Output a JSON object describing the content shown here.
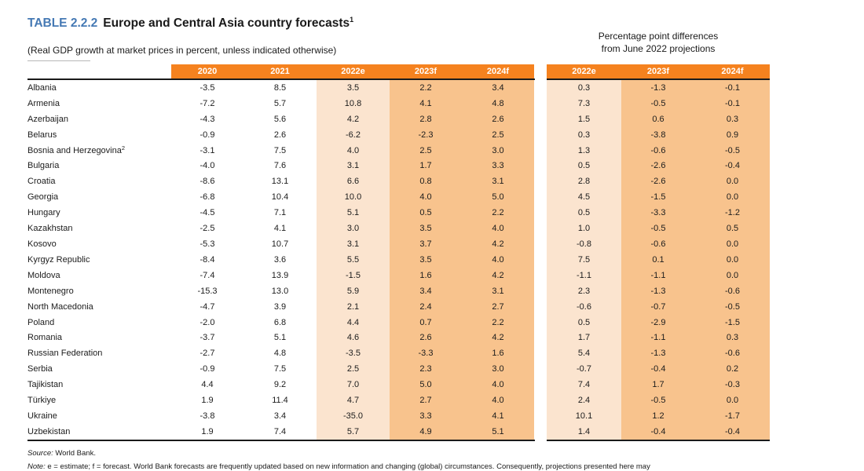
{
  "title": {
    "label": "TABLE 2.2.2",
    "text": "Europe and Central Asia country forecasts",
    "footnote": "1"
  },
  "subtitle": "(Real GDP growth at market prices in percent, unless indicated otherwise)",
  "right_caption": {
    "line1": "Percentage point differences",
    "line2": "from June 2022 projections"
  },
  "columns_main": [
    "2020",
    "2021",
    "2022e",
    "2023f",
    "2024f"
  ],
  "columns_diff": [
    "2022e",
    "2023f",
    "2024f"
  ],
  "colors": {
    "header_orange": "#F5821F",
    "light_shade": "#FBE4CF",
    "dark_shade": "#F8C38D",
    "title_blue": "#4579B4"
  },
  "rows": [
    {
      "country": "Albania",
      "sup": "",
      "main": [
        "-3.5",
        "8.5",
        "3.5",
        "2.2",
        "3.4"
      ],
      "diff": [
        "0.3",
        "-1.3",
        "-0.1"
      ]
    },
    {
      "country": "Armenia",
      "sup": "",
      "main": [
        "-7.2",
        "5.7",
        "10.8",
        "4.1",
        "4.8"
      ],
      "diff": [
        "7.3",
        "-0.5",
        "-0.1"
      ]
    },
    {
      "country": "Azerbaijan",
      "sup": "",
      "main": [
        "-4.3",
        "5.6",
        "4.2",
        "2.8",
        "2.6"
      ],
      "diff": [
        "1.5",
        "0.6",
        "0.3"
      ]
    },
    {
      "country": "Belarus",
      "sup": "",
      "main": [
        "-0.9",
        "2.6",
        "-6.2",
        "-2.3",
        "2.5"
      ],
      "diff": [
        "0.3",
        "-3.8",
        "0.9"
      ]
    },
    {
      "country": "Bosnia and Herzegovina",
      "sup": "2",
      "main": [
        "-3.1",
        "7.5",
        "4.0",
        "2.5",
        "3.0"
      ],
      "diff": [
        "1.3",
        "-0.6",
        "-0.5"
      ]
    },
    {
      "country": "Bulgaria",
      "sup": "",
      "main": [
        "-4.0",
        "7.6",
        "3.1",
        "1.7",
        "3.3"
      ],
      "diff": [
        "0.5",
        "-2.6",
        "-0.4"
      ]
    },
    {
      "country": "Croatia",
      "sup": "",
      "main": [
        "-8.6",
        "13.1",
        "6.6",
        "0.8",
        "3.1"
      ],
      "diff": [
        "2.8",
        "-2.6",
        "0.0"
      ]
    },
    {
      "country": "Georgia",
      "sup": "",
      "main": [
        "-6.8",
        "10.4",
        "10.0",
        "4.0",
        "5.0"
      ],
      "diff": [
        "4.5",
        "-1.5",
        "0.0"
      ]
    },
    {
      "country": "Hungary",
      "sup": "",
      "main": [
        "-4.5",
        "7.1",
        "5.1",
        "0.5",
        "2.2"
      ],
      "diff": [
        "0.5",
        "-3.3",
        "-1.2"
      ]
    },
    {
      "country": "Kazakhstan",
      "sup": "",
      "main": [
        "-2.5",
        "4.1",
        "3.0",
        "3.5",
        "4.0"
      ],
      "diff": [
        "1.0",
        "-0.5",
        "0.5"
      ]
    },
    {
      "country": "Kosovo",
      "sup": "",
      "main": [
        "-5.3",
        "10.7",
        "3.1",
        "3.7",
        "4.2"
      ],
      "diff": [
        "-0.8",
        "-0.6",
        "0.0"
      ]
    },
    {
      "country": "Kyrgyz Republic",
      "sup": "",
      "main": [
        "-8.4",
        "3.6",
        "5.5",
        "3.5",
        "4.0"
      ],
      "diff": [
        "7.5",
        "0.1",
        "0.0"
      ]
    },
    {
      "country": "Moldova",
      "sup": "",
      "main": [
        "-7.4",
        "13.9",
        "-1.5",
        "1.6",
        "4.2"
      ],
      "diff": [
        "-1.1",
        "-1.1",
        "0.0"
      ]
    },
    {
      "country": "Montenegro",
      "sup": "",
      "main": [
        "-15.3",
        "13.0",
        "5.9",
        "3.4",
        "3.1"
      ],
      "diff": [
        "2.3",
        "-1.3",
        "-0.6"
      ]
    },
    {
      "country": "North Macedonia",
      "sup": "",
      "main": [
        "-4.7",
        "3.9",
        "2.1",
        "2.4",
        "2.7"
      ],
      "diff": [
        "-0.6",
        "-0.7",
        "-0.5"
      ]
    },
    {
      "country": "Poland",
      "sup": "",
      "main": [
        "-2.0",
        "6.8",
        "4.4",
        "0.7",
        "2.2"
      ],
      "diff": [
        "0.5",
        "-2.9",
        "-1.5"
      ]
    },
    {
      "country": "Romania",
      "sup": "",
      "main": [
        "-3.7",
        "5.1",
        "4.6",
        "2.6",
        "4.2"
      ],
      "diff": [
        "1.7",
        "-1.1",
        "0.3"
      ]
    },
    {
      "country": "Russian Federation",
      "sup": "",
      "main": [
        "-2.7",
        "4.8",
        "-3.5",
        "-3.3",
        "1.6"
      ],
      "diff": [
        "5.4",
        "-1.3",
        "-0.6"
      ]
    },
    {
      "country": "Serbia",
      "sup": "",
      "main": [
        "-0.9",
        "7.5",
        "2.5",
        "2.3",
        "3.0"
      ],
      "diff": [
        "-0.7",
        "-0.4",
        "0.2"
      ]
    },
    {
      "country": "Tajikistan",
      "sup": "",
      "main": [
        "4.4",
        "9.2",
        "7.0",
        "5.0",
        "4.0"
      ],
      "diff": [
        "7.4",
        "1.7",
        "-0.3"
      ]
    },
    {
      "country": "Türkiye",
      "sup": "",
      "main": [
        "1.9",
        "11.4",
        "4.7",
        "2.7",
        "4.0"
      ],
      "diff": [
        "2.4",
        "-0.5",
        "0.0"
      ]
    },
    {
      "country": "Ukraine",
      "sup": "",
      "main": [
        "-3.8",
        "3.4",
        "-35.0",
        "3.3",
        "4.1"
      ],
      "diff": [
        "10.1",
        "1.2",
        "-1.7"
      ]
    },
    {
      "country": "Uzbekistan",
      "sup": "",
      "main": [
        "1.9",
        "7.4",
        "5.7",
        "4.9",
        "5.1"
      ],
      "diff": [
        "1.4",
        "-0.4",
        "-0.4"
      ]
    }
  ],
  "source": {
    "label": "Source:",
    "text": "World Bank."
  },
  "note": {
    "label": "Note:",
    "text": "e = estimate; f = forecast. World Bank forecasts are frequently updated based on new information and changing (global) circumstances. Consequently, projections presented here may"
  }
}
